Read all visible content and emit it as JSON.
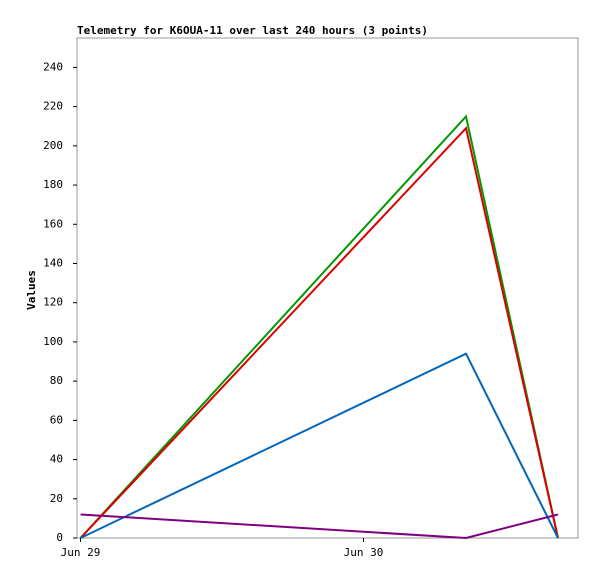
{
  "chart_data": {
    "type": "line",
    "title": "Telemetry for K6OUA-11 over last 240 hours (3 points)",
    "y_label": "Values",
    "x": [
      0,
      32.7,
      40.5
    ],
    "xlim": [
      -0.3,
      42.2
    ],
    "xticks": [
      {
        "value": 0,
        "label": "Jun 29"
      },
      {
        "value": 24,
        "label": "Jun 30"
      }
    ],
    "ylim": [
      0,
      255
    ],
    "yticks": [
      0,
      20,
      40,
      60,
      80,
      100,
      120,
      140,
      160,
      180,
      200,
      220,
      240
    ],
    "series": [
      {
        "color": "#009900",
        "values": [
          0,
          215,
          0
        ]
      },
      {
        "color": "#dd0000",
        "values": [
          0,
          209,
          0
        ]
      },
      {
        "color": "#0066bb",
        "values": [
          0,
          94,
          0
        ]
      },
      {
        "color": "#800080",
        "values": [
          12,
          0,
          12
        ]
      }
    ]
  }
}
